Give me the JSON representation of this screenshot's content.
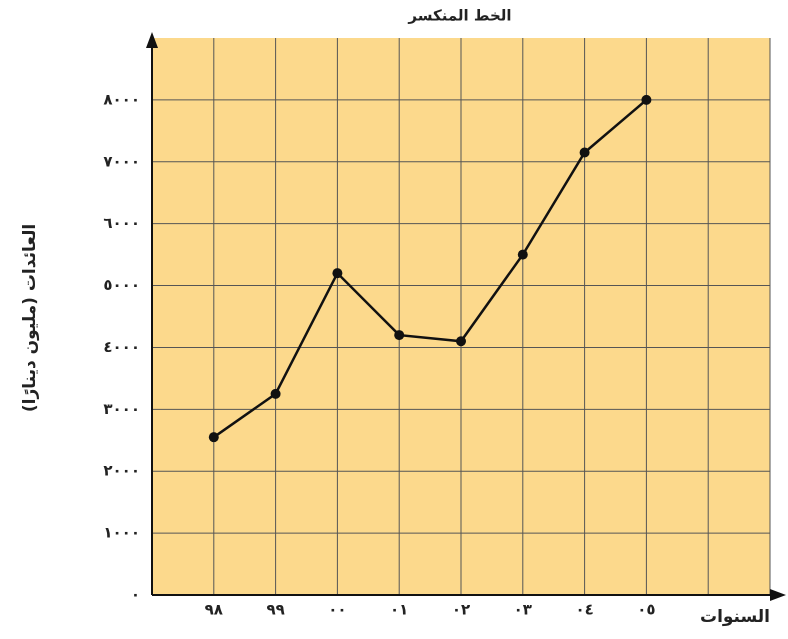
{
  "chart_data": {
    "type": "line",
    "title": "الخط المنكسر",
    "x_label": "السنوات",
    "y_label": "العائدات (مليون دينارًا)",
    "categories": [
      "٩٨",
      "٩٩",
      "٠٠",
      "٠١",
      "٠٢",
      "٠٣",
      "٠٤",
      "٠٥"
    ],
    "series": [
      {
        "name": "العائدات",
        "color": "#111111",
        "values": [
          2550,
          3250,
          5200,
          4200,
          4100,
          5500,
          7150,
          8000
        ]
      }
    ],
    "ylim": [
      0,
      9000
    ],
    "yticks": [
      {
        "value": 0,
        "label": "٠"
      },
      {
        "value": 1000,
        "label": "١٠٠٠"
      },
      {
        "value": 2000,
        "label": "٢٠٠٠"
      },
      {
        "value": 3000,
        "label": "٣٠٠٠"
      },
      {
        "value": 4000,
        "label": "٤٠٠٠"
      },
      {
        "value": 5000,
        "label": "٥٠٠٠"
      },
      {
        "value": 6000,
        "label": "٦٠٠٠"
      },
      {
        "value": 7000,
        "label": "٧٠٠٠"
      },
      {
        "value": 8000,
        "label": "٨٠٠٠"
      }
    ],
    "grid": true,
    "background": "#fcd98c"
  }
}
